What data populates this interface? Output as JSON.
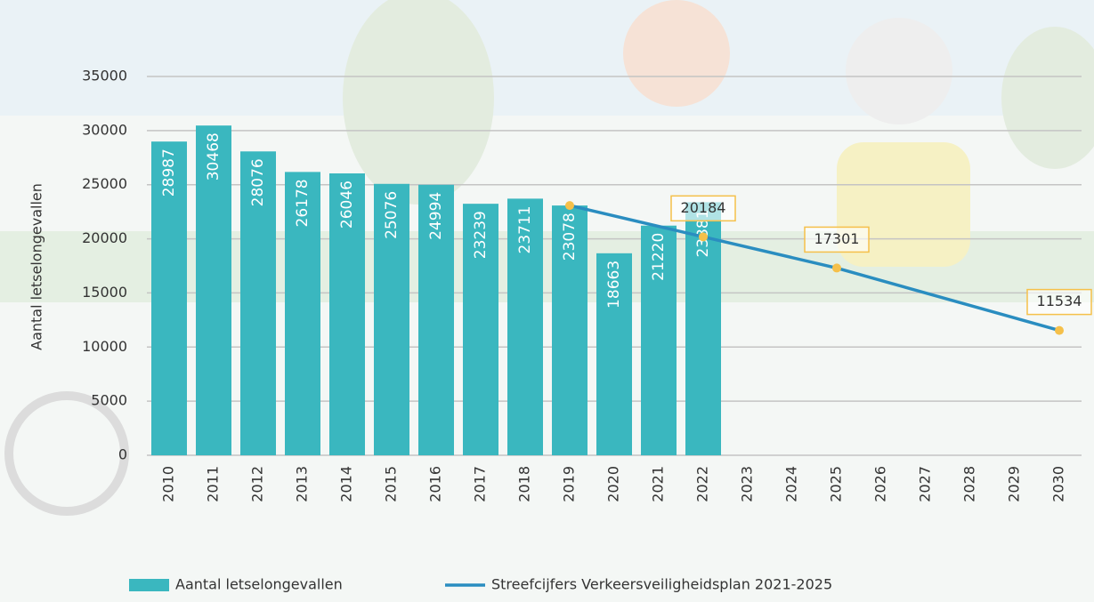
{
  "chart_data": {
    "type": "bar_line",
    "y_label": "Aantal letselongevallen",
    "categories": [
      "2010",
      "2011",
      "2012",
      "2013",
      "2014",
      "2015",
      "2016",
      "2017",
      "2018",
      "2019",
      "2020",
      "2021",
      "2022",
      "2023",
      "2024",
      "2025",
      "2026",
      "2027",
      "2028",
      "2029",
      "2030"
    ],
    "ylim": [
      0,
      35000
    ],
    "yticks": [
      0,
      5000,
      10000,
      15000,
      20000,
      25000,
      30000,
      35000
    ],
    "grid": true,
    "legend": "bottom",
    "series": [
      {
        "name": "Aantal letselongevallen",
        "type": "bar",
        "color": "#3ab7bf",
        "values": [
          28987,
          30468,
          28076,
          26178,
          26046,
          25076,
          24994,
          23239,
          23711,
          23078,
          18663,
          21220,
          23381,
          null,
          null,
          null,
          null,
          null,
          null,
          null,
          null
        ]
      },
      {
        "name": "Streefcijfers Verkeersveiligheidsplan 2021-2025",
        "type": "line",
        "color": "#2a8dc0",
        "marker_color": "#f5c04a",
        "x": [
          2019,
          2022,
          2025,
          2030
        ],
        "values": [
          23078,
          20184,
          17301,
          11534
        ],
        "value_labels": [
          null,
          "20184",
          "17301",
          "11534"
        ]
      }
    ]
  }
}
